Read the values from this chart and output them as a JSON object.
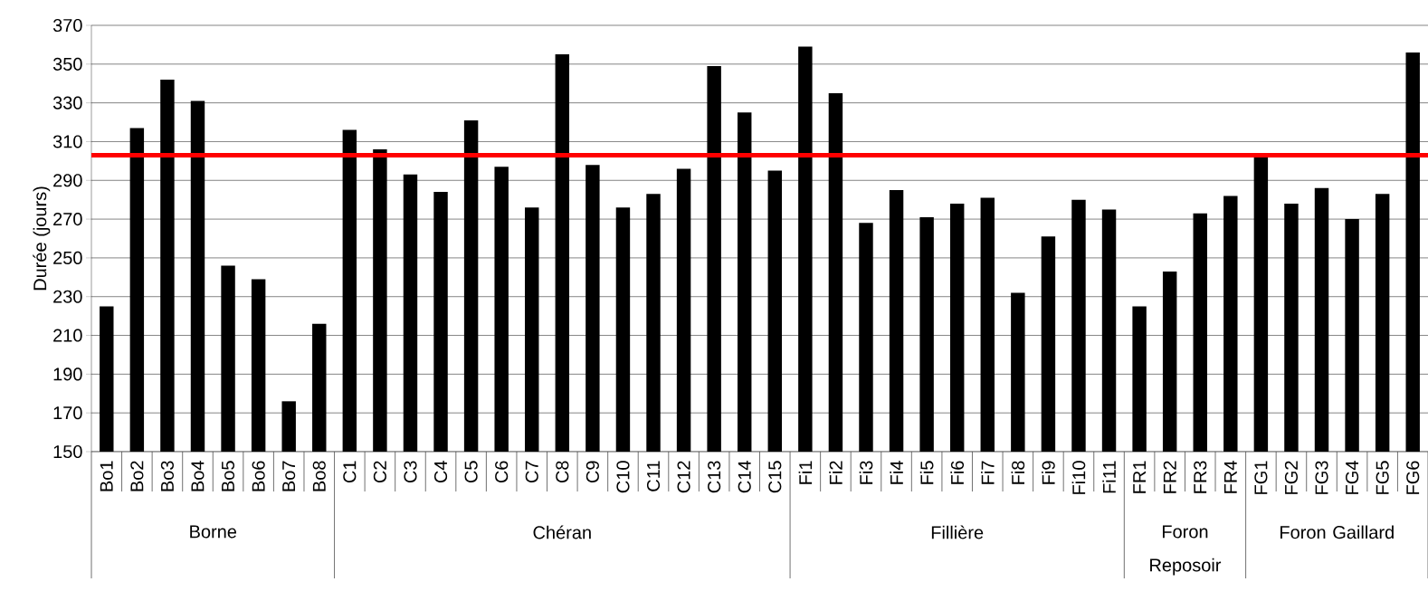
{
  "chart_data": {
    "type": "bar",
    "ylabel": "Durée (jours)",
    "categories": [
      "Bo1",
      "Bo2",
      "Bo3",
      "Bo4",
      "Bo5",
      "Bo6",
      "Bo7",
      "Bo8",
      "C1",
      "C2",
      "C3",
      "C4",
      "C5",
      "C6",
      "C7",
      "C8",
      "C9",
      "C10",
      "C11",
      "C12",
      "C13",
      "C14",
      "C15",
      "Fi1",
      "Fi2",
      "Fi3",
      "Fi4",
      "Fi5",
      "Fi6",
      "Fi7",
      "Fi8",
      "Fi9",
      "Fi10",
      "Fi11",
      "FR1",
      "FR2",
      "FR3",
      "FR4",
      "FG1",
      "FG2",
      "FG3",
      "FG4",
      "FG5",
      "FG6"
    ],
    "values": [
      225,
      317,
      342,
      331,
      246,
      239,
      176,
      216,
      316,
      306,
      293,
      284,
      321,
      297,
      276,
      355,
      298,
      276,
      283,
      296,
      349,
      325,
      295,
      359,
      335,
      268,
      285,
      271,
      278,
      281,
      232,
      261,
      280,
      275,
      225,
      243,
      273,
      282,
      302,
      278,
      286,
      270,
      283,
      356
    ],
    "color": "#000000",
    "ylim": [
      150,
      370
    ],
    "yticks": [
      150,
      170,
      190,
      210,
      230,
      250,
      270,
      290,
      310,
      330,
      350,
      370
    ],
    "grid": "y",
    "ref_lines": [
      {
        "axis": "y",
        "value": 303,
        "color": "#ff0000"
      }
    ],
    "annotations": [
      "Borne",
      "Chéran",
      "Fillière",
      "Foron Reposoir",
      "Foron Gaillard"
    ]
  }
}
